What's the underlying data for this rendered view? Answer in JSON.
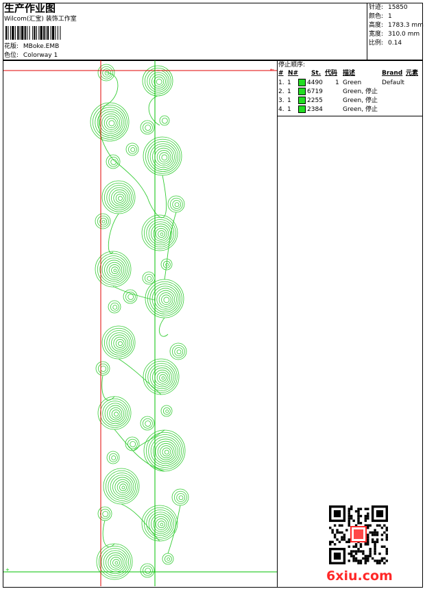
{
  "header": {
    "title": "生产作业图",
    "subtitle": "Wilcom(汇宝) 装饰工作室",
    "design_label": "花版:",
    "design_value": "MBoke.EMB",
    "colorway_label": "色位:",
    "colorway_value": "Colorway 1"
  },
  "stats": [
    {
      "label": "针迹:",
      "value": "15850"
    },
    {
      "label": "颜色:",
      "value": "1"
    },
    {
      "label": "高度:",
      "value": "1783.3 mm"
    },
    {
      "label": "宽度:",
      "value": "310.0 mm"
    },
    {
      "label": "比例:",
      "value": "0.14"
    }
  ],
  "stop_sequence": {
    "title": "停止顺序:",
    "headers": [
      "#",
      "N#",
      "St.",
      "代码",
      "描述",
      "Brand",
      "元素"
    ],
    "rows": [
      {
        "index": "1.",
        "n": "1",
        "stitches": "4490",
        "code": "1",
        "desc": "Green",
        "brand": "Default"
      },
      {
        "index": "2.",
        "n": "1",
        "stitches": "6719",
        "code": "",
        "desc": "Green, 停止",
        "brand": ""
      },
      {
        "index": "3.",
        "n": "1",
        "stitches": "2255",
        "code": "",
        "desc": "Green, 停止",
        "brand": ""
      },
      {
        "index": "4.",
        "n": "1",
        "stitches": "2384",
        "code": "",
        "desc": "Green, 停止",
        "brand": ""
      }
    ]
  },
  "colors": {
    "thread": "#33cc33",
    "swatch": "#22dd22",
    "guide_red": "#e00000",
    "guide_green": "#00c000",
    "watermark": "#ff2828"
  },
  "watermark": {
    "text": "6xiu.com"
  }
}
